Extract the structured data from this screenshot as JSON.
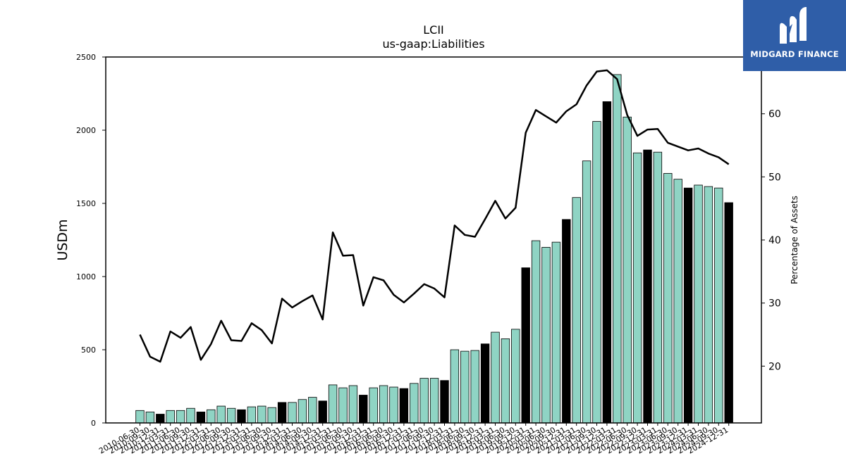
{
  "chart_data": {
    "type": "bar",
    "title": "LCII",
    "subtitle": "us-gaap:Liabilities",
    "ylabel": "USDm",
    "y2label": "Percentage of Assets",
    "ylim": [
      0,
      2500
    ],
    "y2lim": [
      11,
      69
    ],
    "yticks": [
      0,
      500,
      1000,
      1500,
      2000,
      2500
    ],
    "y2ticks": [
      20,
      30,
      40,
      50,
      60
    ],
    "grid": false,
    "colors": {
      "bar_default": "#8fd4c4",
      "bar_highlight": "#000000",
      "line": "#000000"
    },
    "categories": [
      "2010-06-30",
      "2010-09-30",
      "2010-12-31",
      "2011-03-31",
      "2011-06-30",
      "2011-09-30",
      "2011-12-31",
      "2012-03-31",
      "2012-06-30",
      "2012-09-30",
      "2012-12-31",
      "2013-03-31",
      "2013-06-30",
      "2013-09-30",
      "2013-12-31",
      "2014-03-31",
      "2014-06-30",
      "2014-09-30",
      "2014-12-31",
      "2015-03-31",
      "2015-06-30",
      "2015-09-30",
      "2015-12-31",
      "2016-03-31",
      "2016-06-30",
      "2016-09-30",
      "2016-12-31",
      "2017-03-31",
      "2017-06-30",
      "2017-09-30",
      "2017-12-31",
      "2018-03-31",
      "2018-06-30",
      "2018-09-30",
      "2018-12-31",
      "2019-03-31",
      "2019-06-30",
      "2019-09-30",
      "2019-12-31",
      "2020-03-31",
      "2020-06-30",
      "2020-09-30",
      "2020-12-31",
      "2021-03-31",
      "2021-06-30",
      "2021-09-30",
      "2021-12-31",
      "2022-03-31",
      "2022-06-30",
      "2022-09-30",
      "2022-12-31",
      "2023-03-31",
      "2023-06-30",
      "2023-09-30",
      "2023-12-31",
      "2024-03-31",
      "2024-06-30",
      "2024-09-30",
      "2024-12-31"
    ],
    "series": [
      {
        "name": "Liabilities",
        "kind": "bar",
        "values": [
          85,
          75,
          60,
          85,
          85,
          100,
          75,
          90,
          115,
          100,
          90,
          110,
          115,
          105,
          140,
          140,
          160,
          175,
          150,
          260,
          240,
          255,
          190,
          240,
          255,
          245,
          235,
          270,
          305,
          305,
          290,
          500,
          490,
          495,
          540,
          620,
          575,
          640,
          1060,
          1245,
          1200,
          1235,
          1390,
          1540,
          1790,
          2060,
          2195,
          2380,
          2090,
          1845,
          1865,
          1850,
          1705,
          1665,
          1605,
          1625,
          1615,
          1605,
          1505
        ],
        "highlight": [
          false,
          false,
          true,
          false,
          false,
          false,
          true,
          false,
          false,
          false,
          true,
          false,
          false,
          false,
          true,
          false,
          false,
          false,
          true,
          false,
          false,
          false,
          true,
          false,
          false,
          false,
          true,
          false,
          false,
          false,
          true,
          false,
          false,
          false,
          true,
          false,
          false,
          false,
          true,
          false,
          false,
          false,
          true,
          false,
          false,
          false,
          true,
          false,
          false,
          false,
          true,
          false,
          false,
          false,
          true,
          false,
          false,
          false,
          true
        ]
      },
      {
        "name": "Percentage of Assets",
        "kind": "line",
        "axis": "right",
        "values": [
          25.0,
          21.5,
          20.7,
          25.5,
          24.5,
          26.2,
          21.0,
          23.5,
          27.2,
          24.1,
          24.0,
          26.8,
          25.7,
          23.6,
          30.7,
          29.3,
          30.3,
          31.2,
          27.4,
          41.2,
          37.5,
          37.6,
          29.6,
          34.1,
          33.6,
          31.3,
          30.1,
          31.5,
          33.0,
          32.3,
          30.9,
          42.3,
          40.8,
          40.5,
          43.3,
          46.2,
          43.4,
          45.1,
          57.0,
          60.6,
          59.6,
          58.6,
          60.4,
          61.5,
          64.5,
          66.7,
          66.9,
          65.5,
          59.8,
          56.5,
          57.5,
          57.6,
          55.4,
          54.8,
          54.2,
          54.5,
          53.7,
          53.1,
          52.0
        ]
      }
    ]
  },
  "logo": {
    "text": "MIDGARD FINANCE",
    "icon": "midgard-mountain-icon",
    "background": "#2f5ea8"
  }
}
